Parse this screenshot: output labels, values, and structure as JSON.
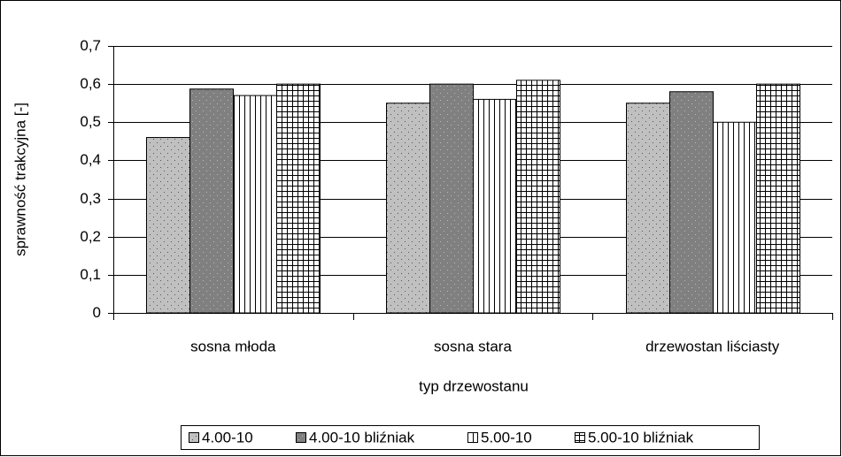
{
  "chart_data": {
    "type": "bar",
    "xlabel": "typ drzewostanu",
    "ylabel": "sprawność trakcyjna [-]",
    "categories": [
      "sosna młoda",
      "sosna stara",
      "drzewostan liściasty"
    ],
    "series": [
      {
        "name": "4.00-10",
        "color": "#c0c0c0",
        "hatch": "dots",
        "values": [
          0.46,
          0.55,
          0.55
        ]
      },
      {
        "name": "4.00-10 bliźniak",
        "color": "#808080",
        "hatch": "dots",
        "values": [
          0.587,
          0.6,
          0.58
        ]
      },
      {
        "name": "5.00-10",
        "color": "#ffffff",
        "hatch": "vlines",
        "values": [
          0.57,
          0.56,
          0.5
        ]
      },
      {
        "name": "5.00-10 bliźniak",
        "color": "#ffffff",
        "hatch": "grid",
        "values": [
          0.6,
          0.61,
          0.6
        ]
      }
    ],
    "ylim": [
      0,
      0.7
    ],
    "yticks": [
      0,
      {
        "value": 0.1,
        "label": "0,1"
      },
      {
        "value": 0.2,
        "label": "0,2"
      },
      {
        "value": 0.3,
        "label": "0,3"
      },
      {
        "value": 0.4,
        "label": "0,4"
      },
      {
        "value": 0.5,
        "label": "0,5"
      },
      {
        "value": 0.6,
        "label": "0,6"
      },
      {
        "value": 0.7,
        "label": "0,7"
      }
    ],
    "grid": true,
    "legend": "bottom"
  }
}
